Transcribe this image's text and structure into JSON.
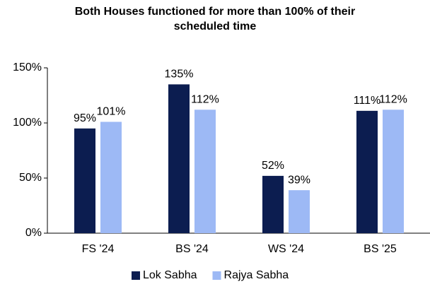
{
  "chart_data": {
    "type": "bar",
    "title": "Both Houses functioned for more than 100% of their scheduled time",
    "categories": [
      "FS '24",
      "BS '24",
      "WS '24",
      "BS '25"
    ],
    "series": [
      {
        "name": "Lok Sabha",
        "color": "#0c1d50",
        "values": [
          95,
          135,
          52,
          111
        ],
        "value_labels": [
          "95%",
          "135%",
          "52%",
          "111%"
        ]
      },
      {
        "name": "Rajya Sabha",
        "color": "#9db9f5",
        "values": [
          101,
          112,
          39,
          112
        ],
        "value_labels": [
          "101%",
          "112%",
          "39%",
          "112%"
        ]
      }
    ],
    "ylim": [
      0,
      150
    ],
    "yticks": [
      {
        "value": 0,
        "label": "0%"
      },
      {
        "value": 50,
        "label": "50%"
      },
      {
        "value": 100,
        "label": "100%"
      },
      {
        "value": 150,
        "label": "150%"
      }
    ],
    "grid": false,
    "legend": "bottom"
  }
}
